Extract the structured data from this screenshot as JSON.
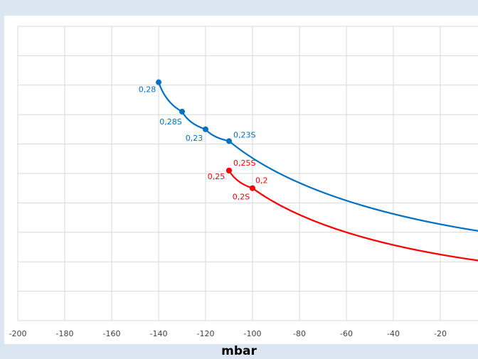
{
  "chart_data": {
    "type": "line",
    "xlabel": "mbar",
    "xlim": [
      -200,
      0
    ],
    "x_ticks": [
      -200,
      -180,
      -160,
      -140,
      -120,
      -100,
      -80,
      -60,
      -40,
      -20
    ],
    "grid": true,
    "legend": "none",
    "series": [
      {
        "color": "#0070c0",
        "points": [
          {
            "x": -140,
            "y": 8.1,
            "label": "0,28"
          },
          {
            "x": -130,
            "y": 7.1,
            "label": "0,28S"
          },
          {
            "x": -120,
            "y": 6.5,
            "label": "0,23"
          },
          {
            "x": -110,
            "y": 6.1,
            "label": "0,23S"
          },
          {
            "x": 0,
            "y": 3.0,
            "label": ""
          }
        ]
      },
      {
        "color": "#ff0000",
        "points": [
          {
            "x": -110,
            "y": 5.1,
            "label": "0,25"
          },
          {
            "x": -110,
            "y": 5.1,
            "label": "0,25S"
          },
          {
            "x": -100,
            "y": 4.5,
            "label": "0,2"
          },
          {
            "x": -100,
            "y": 4.5,
            "label": "0,2S"
          },
          {
            "x": 0,
            "y": 2.0,
            "label": ""
          }
        ]
      }
    ],
    "ylim": [
      0,
      10
    ]
  }
}
